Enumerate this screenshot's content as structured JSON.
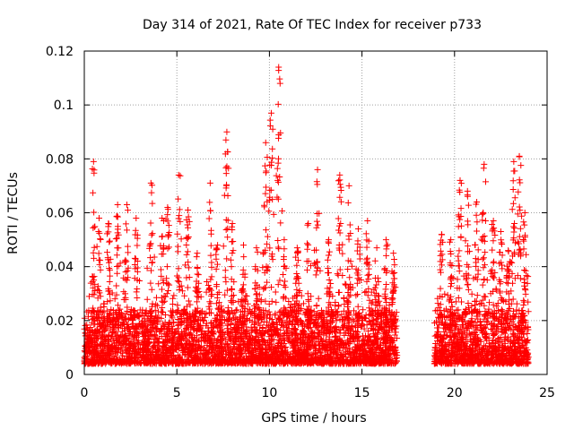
{
  "chart_data": {
    "type": "scatter",
    "title": "Day 314 of 2021, Rate Of TEC Index for receiver p733",
    "xlabel": "GPS time / hours",
    "ylabel": "ROTI / TECUs",
    "xlim": [
      0,
      25
    ],
    "ylim": [
      0,
      0.12
    ],
    "x_ticks": [
      0,
      5,
      10,
      15,
      20,
      25
    ],
    "x_tick_labels": [
      "0",
      "5",
      "10",
      "15",
      "20",
      "25"
    ],
    "y_ticks": [
      0,
      0.02,
      0.04,
      0.06,
      0.08,
      0.1,
      0.12
    ],
    "y_tick_labels": [
      "0",
      "0.02",
      "0.04",
      "0.06",
      "0.08",
      "0.1",
      "0.12"
    ],
    "grid": true,
    "marker": "plus",
    "color": "#ff0000",
    "coverage_segments": [
      [
        0.0,
        16.9
      ],
      [
        18.9,
        24.0
      ]
    ],
    "typical_range": [
      0.004,
      0.03
    ],
    "peaks": [
      {
        "x": 0.5,
        "y": 0.079
      },
      {
        "x": 0.8,
        "y": 0.058
      },
      {
        "x": 1.3,
        "y": 0.056
      },
      {
        "x": 1.8,
        "y": 0.063
      },
      {
        "x": 2.3,
        "y": 0.063
      },
      {
        "x": 2.8,
        "y": 0.058
      },
      {
        "x": 3.6,
        "y": 0.071
      },
      {
        "x": 4.2,
        "y": 0.058
      },
      {
        "x": 4.5,
        "y": 0.062
      },
      {
        "x": 5.1,
        "y": 0.074
      },
      {
        "x": 5.6,
        "y": 0.061
      },
      {
        "x": 6.1,
        "y": 0.045
      },
      {
        "x": 6.8,
        "y": 0.071
      },
      {
        "x": 7.2,
        "y": 0.048
      },
      {
        "x": 7.7,
        "y": 0.09
      },
      {
        "x": 8.0,
        "y": 0.056
      },
      {
        "x": 8.6,
        "y": 0.048
      },
      {
        "x": 9.3,
        "y": 0.047
      },
      {
        "x": 9.8,
        "y": 0.086
      },
      {
        "x": 10.1,
        "y": 0.097
      },
      {
        "x": 10.5,
        "y": 0.114
      },
      {
        "x": 10.8,
        "y": 0.05
      },
      {
        "x": 11.5,
        "y": 0.047
      },
      {
        "x": 12.1,
        "y": 0.056
      },
      {
        "x": 12.6,
        "y": 0.076
      },
      {
        "x": 13.2,
        "y": 0.05
      },
      {
        "x": 13.8,
        "y": 0.074
      },
      {
        "x": 14.3,
        "y": 0.07
      },
      {
        "x": 14.8,
        "y": 0.054
      },
      {
        "x": 15.3,
        "y": 0.057
      },
      {
        "x": 15.8,
        "y": 0.047
      },
      {
        "x": 16.3,
        "y": 0.05
      },
      {
        "x": 16.7,
        "y": 0.045
      },
      {
        "x": 19.3,
        "y": 0.052
      },
      {
        "x": 19.8,
        "y": 0.05
      },
      {
        "x": 20.3,
        "y": 0.072
      },
      {
        "x": 20.7,
        "y": 0.068
      },
      {
        "x": 21.2,
        "y": 0.064
      },
      {
        "x": 21.6,
        "y": 0.078
      },
      {
        "x": 22.1,
        "y": 0.057
      },
      {
        "x": 22.5,
        "y": 0.053
      },
      {
        "x": 22.9,
        "y": 0.046
      },
      {
        "x": 23.2,
        "y": 0.079
      },
      {
        "x": 23.5,
        "y": 0.081
      },
      {
        "x": 23.8,
        "y": 0.06
      }
    ]
  }
}
